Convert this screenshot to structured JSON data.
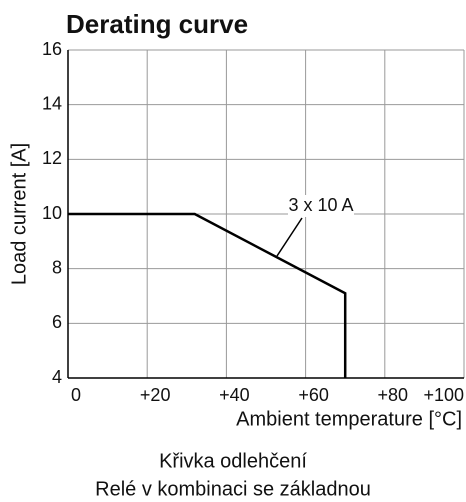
{
  "chart_data": {
    "type": "line",
    "title": "Derating curve",
    "x_label": "Ambient temperature [°C]",
    "y_label": "Load current [A]",
    "annotation": "3 x 10 A",
    "captions": [
      "Křivka odlehčení",
      "Relé v kombinaci se základnou"
    ],
    "x": [
      0,
      32,
      70,
      70
    ],
    "series": [
      {
        "name": "3 x 10 A",
        "color": "#000000",
        "values": [
          10,
          10,
          7.1,
          4
        ]
      }
    ],
    "xlim": [
      0,
      100
    ],
    "xticks": [
      0,
      {
        "value": 20,
        "label": "+20"
      },
      {
        "value": 40,
        "label": "+40"
      },
      {
        "value": 60,
        "label": "+60"
      },
      {
        "value": 80,
        "label": "+80"
      },
      {
        "value": 100,
        "label": "+100"
      }
    ],
    "ylim": [
      4,
      16
    ],
    "yticks": [
      4,
      6,
      8,
      10,
      12,
      14,
      16
    ],
    "grid": true
  }
}
